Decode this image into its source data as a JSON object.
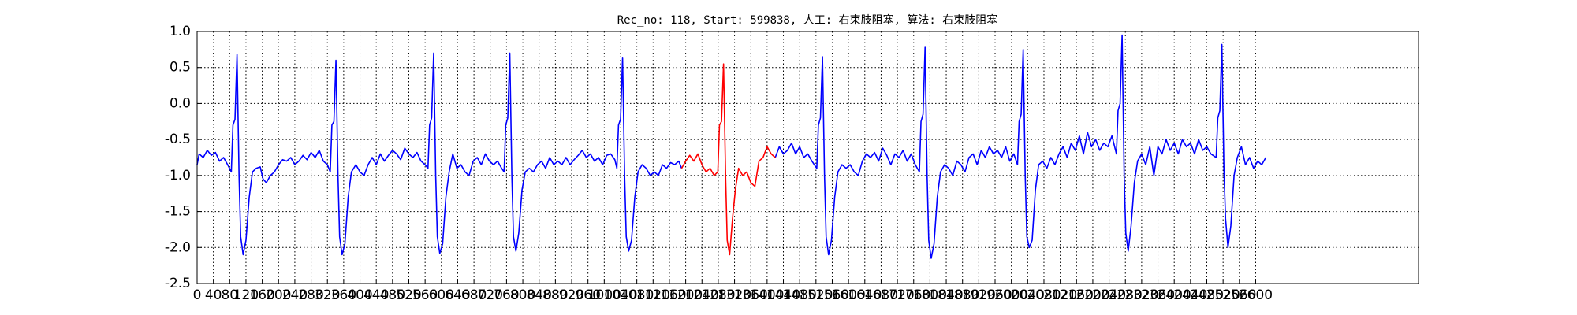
{
  "chart_data": {
    "type": "line",
    "title": "Rec_no: 118, Start: 599838, 人工: 右束肢阻塞, 算法: 右束肢阻塞",
    "xlim": [
      0,
      3000
    ],
    "ylim": [
      -2.5,
      1.0
    ],
    "xticks": [
      0,
      40,
      80,
      120,
      160,
      200,
      240,
      280,
      320,
      360,
      400,
      440,
      480,
      520,
      560,
      600,
      640,
      680,
      720,
      760,
      800,
      840,
      880,
      920,
      960,
      1000,
      1040,
      1080,
      1120,
      1160,
      1200,
      1240,
      1280,
      1320,
      1360,
      1400,
      1440,
      1480,
      1520,
      1560,
      1600,
      1640,
      1680,
      1720,
      1760,
      1800,
      1840,
      1880,
      1920,
      1960,
      2000,
      2040,
      2080,
      2120,
      2160,
      2200,
      2240,
      2280,
      2320,
      2360,
      2400,
      2440,
      2480,
      2520,
      2560,
      2600
    ],
    "yticks": [
      -2.5,
      {
        "value": -2.0,
        "label": "-2.0"
      },
      -1.5,
      {
        "value": -1.0,
        "label": "-1.0"
      },
      -0.5,
      {
        "value": 0.0,
        "label": "0.0"
      },
      0.5,
      {
        "value": 1.0,
        "label": "1.0"
      }
    ],
    "grid": true,
    "series": [
      {
        "color": "#0000ff",
        "x": [
          0,
          5,
          15,
          25,
          35,
          45,
          55,
          65,
          75,
          84,
          88,
          93,
          98,
          103,
          107,
          113,
          120,
          128,
          136,
          145,
          155,
          162,
          170,
          180,
          190,
          200,
          210,
          220,
          230,
          240,
          250,
          260,
          270,
          280,
          290,
          300,
          310,
          320,
          327,
          331,
          336,
          341,
          346,
          350,
          356,
          363,
          371,
          379,
          390,
          400,
          410,
          420,
          430,
          440,
          450,
          460,
          470,
          480,
          490,
          500,
          510,
          520,
          530,
          540,
          550,
          560,
          567,
          571,
          576,
          581,
          586,
          590,
          596,
          603,
          611,
          619,
          628,
          638,
          648,
          658,
          668,
          678,
          688,
          698,
          708,
          718,
          728,
          738,
          748,
          754,
          758,
          763,
          768,
          773,
          777,
          783,
          790,
          798,
          806,
          816,
          826,
          836,
          846,
          856,
          866,
          876,
          886,
          896,
          906,
          916,
          926,
          936,
          946,
          956,
          966,
          976,
          986,
          996,
          1006,
          1016,
          1026,
          1031,
          1035,
          1040,
          1045,
          1050,
          1054,
          1060,
          1067,
          1075,
          1083,
          1093,
          1103,
          1113,
          1123,
          1133,
          1143,
          1153,
          1163,
          1173,
          1183,
          1190,
          1300,
          1420,
          1430,
          1440,
          1450,
          1460,
          1470,
          1480,
          1490,
          1500,
          1510,
          1522,
          1526,
          1531,
          1536,
          1541,
          1545,
          1551,
          1558,
          1566,
          1574,
          1584,
          1594,
          1604,
          1614,
          1624,
          1634,
          1644,
          1654,
          1664,
          1674,
          1684,
          1694,
          1704,
          1714,
          1724,
          1734,
          1744,
          1754,
          1764,
          1774,
          1778,
          1783,
          1788,
          1793,
          1797,
          1803,
          1810,
          1818,
          1826,
          1836,
          1846,
          1856,
          1866,
          1876,
          1886,
          1896,
          1906,
          1916,
          1926,
          1936,
          1946,
          1956,
          1966,
          1976,
          1986,
          1996,
          2006,
          2015,
          2019,
          2024,
          2029,
          2034,
          2038,
          2044,
          2051,
          2059,
          2067,
          2077,
          2087,
          2097,
          2107,
          2117,
          2127,
          2137,
          2147,
          2157,
          2167,
          2177,
          2187,
          2197,
          2207,
          2217,
          2227,
          2237,
          2247,
          2258,
          2262,
          2267,
          2272,
          2277,
          2281,
          2287,
          2294,
          2302,
          2310,
          2320,
          2330,
          2340,
          2350,
          2360,
          2370,
          2380,
          2390,
          2400,
          2410,
          2420,
          2430,
          2440,
          2450,
          2460,
          2470,
          2480,
          2490,
          2503,
          2507,
          2512,
          2517,
          2522,
          2526,
          2532,
          2539,
          2547,
          2555,
          2565,
          2575,
          2585,
          2595,
          2605,
          2615,
          2625
        ],
        "values": [
          -0.85,
          -0.7,
          -0.75,
          -0.65,
          -0.72,
          -0.68,
          -0.8,
          -0.75,
          -0.85,
          -0.95,
          -0.3,
          -0.22,
          0.68,
          -1.0,
          -1.85,
          -2.1,
          -1.9,
          -1.3,
          -0.95,
          -0.9,
          -0.88,
          -1.05,
          -1.1,
          -1.0,
          -0.95,
          -0.85,
          -0.78,
          -0.8,
          -0.75,
          -0.85,
          -0.8,
          -0.72,
          -0.78,
          -0.68,
          -0.75,
          -0.65,
          -0.8,
          -0.85,
          -0.95,
          -0.3,
          -0.25,
          0.6,
          -1.0,
          -1.85,
          -2.1,
          -1.95,
          -1.3,
          -0.95,
          -0.85,
          -0.95,
          -1.0,
          -0.85,
          -0.75,
          -0.85,
          -0.7,
          -0.8,
          -0.72,
          -0.65,
          -0.7,
          -0.78,
          -0.62,
          -0.7,
          -0.75,
          -0.68,
          -0.8,
          -0.85,
          -0.9,
          -0.3,
          -0.2,
          0.7,
          -1.0,
          -1.85,
          -2.08,
          -1.95,
          -1.3,
          -0.95,
          -0.7,
          -0.9,
          -0.85,
          -0.95,
          -1.0,
          -0.8,
          -0.75,
          -0.85,
          -0.7,
          -0.8,
          -0.85,
          -0.8,
          -0.9,
          -0.95,
          -0.3,
          -0.2,
          0.7,
          -1.0,
          -1.85,
          -2.05,
          -1.8,
          -1.2,
          -0.95,
          -0.9,
          -0.95,
          -0.85,
          -0.8,
          -0.9,
          -0.75,
          -0.85,
          -0.8,
          -0.85,
          -0.75,
          -0.85,
          -0.78,
          -0.72,
          -0.65,
          -0.75,
          -0.7,
          -0.8,
          -0.75,
          -0.85,
          -0.72,
          -0.7,
          -0.78,
          -0.9,
          -0.3,
          -0.22,
          0.63,
          -1.0,
          -1.85,
          -2.05,
          -1.9,
          -1.3,
          -0.95,
          -0.85,
          -0.9,
          -1.0,
          -0.95,
          -1.0,
          -0.85,
          -0.9,
          -0.82,
          -0.85,
          -0.8,
          -0.9,
          null,
          -0.75,
          -0.6,
          -0.7,
          -0.65,
          -0.55,
          -0.7,
          -0.6,
          -0.75,
          -0.7,
          -0.8,
          -0.9,
          -0.3,
          -0.2,
          0.65,
          -1.0,
          -1.85,
          -2.1,
          -1.9,
          -1.3,
          -0.95,
          -0.85,
          -0.9,
          -0.85,
          -0.95,
          -1.0,
          -0.8,
          -0.7,
          -0.75,
          -0.68,
          -0.8,
          -0.62,
          -0.72,
          -0.85,
          -0.7,
          -0.75,
          -0.65,
          -0.8,
          -0.7,
          -0.85,
          -0.95,
          -0.25,
          -0.15,
          0.78,
          -1.0,
          -1.9,
          -2.15,
          -1.95,
          -1.3,
          -0.95,
          -0.85,
          -0.9,
          -1.0,
          -0.8,
          -0.85,
          -0.95,
          -0.75,
          -0.7,
          -0.85,
          -0.65,
          -0.75,
          -0.6,
          -0.7,
          -0.65,
          -0.75,
          -0.6,
          -0.8,
          -0.7,
          -0.85,
          -0.25,
          -0.15,
          0.75,
          -1.0,
          -1.85,
          -2.0,
          -1.9,
          -1.2,
          -0.85,
          -0.8,
          -0.9,
          -0.75,
          -0.85,
          -0.7,
          -0.6,
          -0.75,
          -0.55,
          -0.65,
          -0.45,
          -0.7,
          -0.4,
          -0.6,
          -0.5,
          -0.65,
          -0.55,
          -0.6,
          -0.45,
          -0.7,
          -0.1,
          0.0,
          0.95,
          -1.0,
          -1.8,
          -2.05,
          -1.7,
          -1.1,
          -0.8,
          -0.7,
          -0.85,
          -0.6,
          -1.0,
          -0.6,
          -0.7,
          -0.5,
          -0.65,
          -0.55,
          -0.7,
          -0.5,
          -0.6,
          -0.55,
          -0.7,
          -0.5,
          -0.65,
          -0.6,
          -0.7,
          -0.75,
          -0.2,
          -0.1,
          0.82,
          -0.9,
          -1.6,
          -2.0,
          -1.7,
          -1.0,
          -0.75,
          -0.6,
          -0.85,
          -0.75,
          -0.9,
          -0.8,
          -0.85,
          -0.75
        ]
      },
      {
        "color": "#ff0000",
        "x": [
          1190,
          1200,
          1210,
          1220,
          1230,
          1240,
          1250,
          1260,
          1270,
          1279,
          1283,
          1288,
          1293,
          1298,
          1302,
          1308,
          1315,
          1322,
          1330,
          1340,
          1350,
          1360,
          1370,
          1380,
          1390,
          1400,
          1410,
          1420
        ],
        "values": [
          -0.9,
          -0.8,
          -0.72,
          -0.8,
          -0.7,
          -0.85,
          -0.95,
          -0.9,
          -1.0,
          -0.95,
          -0.3,
          -0.25,
          0.55,
          -1.0,
          -1.9,
          -2.1,
          -1.6,
          -1.2,
          -0.9,
          -1.0,
          -0.95,
          -1.1,
          -1.15,
          -0.8,
          -0.75,
          -0.6,
          -0.7,
          -0.75
        ]
      }
    ]
  }
}
